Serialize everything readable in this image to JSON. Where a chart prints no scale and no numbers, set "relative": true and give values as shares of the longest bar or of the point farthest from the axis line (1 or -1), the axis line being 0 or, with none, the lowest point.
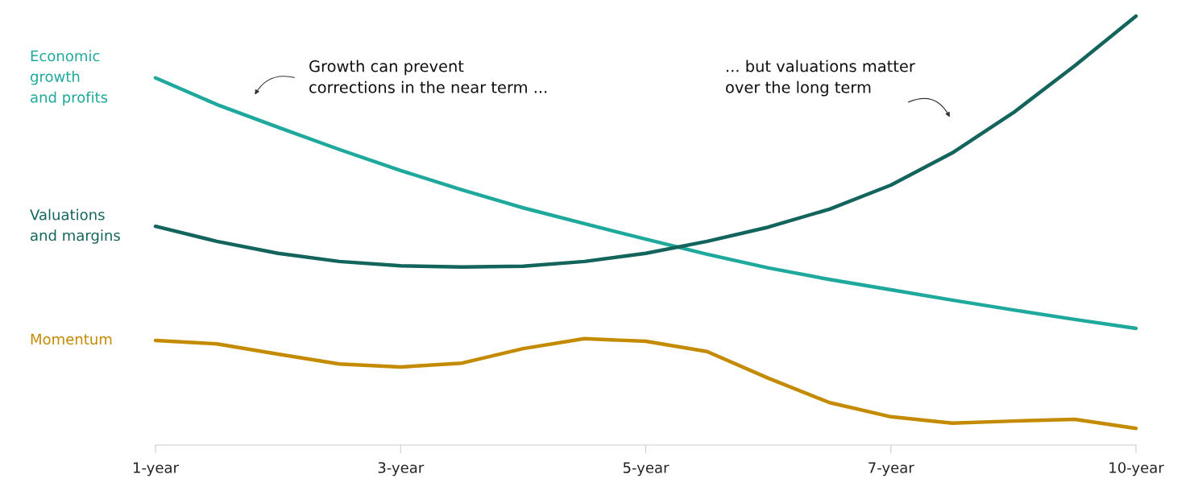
{
  "chart_data": {
    "type": "line",
    "relative": true,
    "categories": [
      "1-year",
      null,
      null,
      null,
      "3-year",
      null,
      null,
      null,
      "5-year",
      null,
      null,
      null,
      "7-year",
      null,
      null,
      null,
      "10-year"
    ],
    "series": [
      {
        "name": "Economic\ngrowth\nand profits",
        "color": "#1fa89c",
        "values": [
          0.856,
          0.794,
          0.741,
          0.689,
          0.64,
          0.595,
          0.553,
          0.516,
          0.48,
          0.445,
          0.413,
          0.386,
          0.362,
          0.338,
          0.315,
          0.293,
          0.272
        ]
      },
      {
        "name": "Valuations\nand margins",
        "color": "#13645c",
        "values": [
          0.51,
          0.475,
          0.447,
          0.428,
          0.418,
          0.415,
          0.417,
          0.428,
          0.447,
          0.475,
          0.508,
          0.55,
          0.606,
          0.681,
          0.775,
          0.884,
          1.0
        ]
      },
      {
        "name": "Momentum",
        "color": "#c48a00",
        "values": [
          0.244,
          0.236,
          0.212,
          0.189,
          0.182,
          0.191,
          0.225,
          0.248,
          0.242,
          0.218,
          0.156,
          0.099,
          0.066,
          0.051,
          0.056,
          0.06,
          0.039
        ]
      }
    ],
    "annotations": [
      "Growth can prevent\ncorrections in the near term ...",
      "... but valuations matter\nover the long term"
    ],
    "grid": false,
    "legend": false,
    "marker": "none",
    "line_style": "solid"
  }
}
